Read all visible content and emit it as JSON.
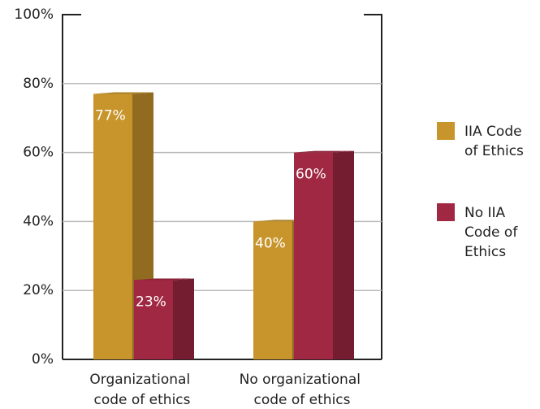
{
  "chart_data": {
    "type": "bar",
    "categories": [
      "Organizational code of ethics",
      "No organizational code of ethics"
    ],
    "series": [
      {
        "name": "IIA Code of Ethics",
        "color": "#c8952c",
        "values": [
          77,
          40
        ],
        "value_labels": [
          "77%",
          "40%"
        ]
      },
      {
        "name": "No IIA Code of Ethics",
        "color": "#a12842",
        "values": [
          23,
          60
        ],
        "value_labels": [
          "23%",
          "60%"
        ]
      }
    ],
    "ylim": [
      0,
      100
    ],
    "yticks": [
      {
        "value": 0,
        "label": "0%"
      },
      {
        "value": 20,
        "label": "20%"
      },
      {
        "value": 40,
        "label": "40%"
      },
      {
        "value": 60,
        "label": "60%"
      },
      {
        "value": 80,
        "label": "80%"
      },
      {
        "value": 100,
        "label": "100%"
      }
    ],
    "grid": true,
    "legend": "right"
  }
}
